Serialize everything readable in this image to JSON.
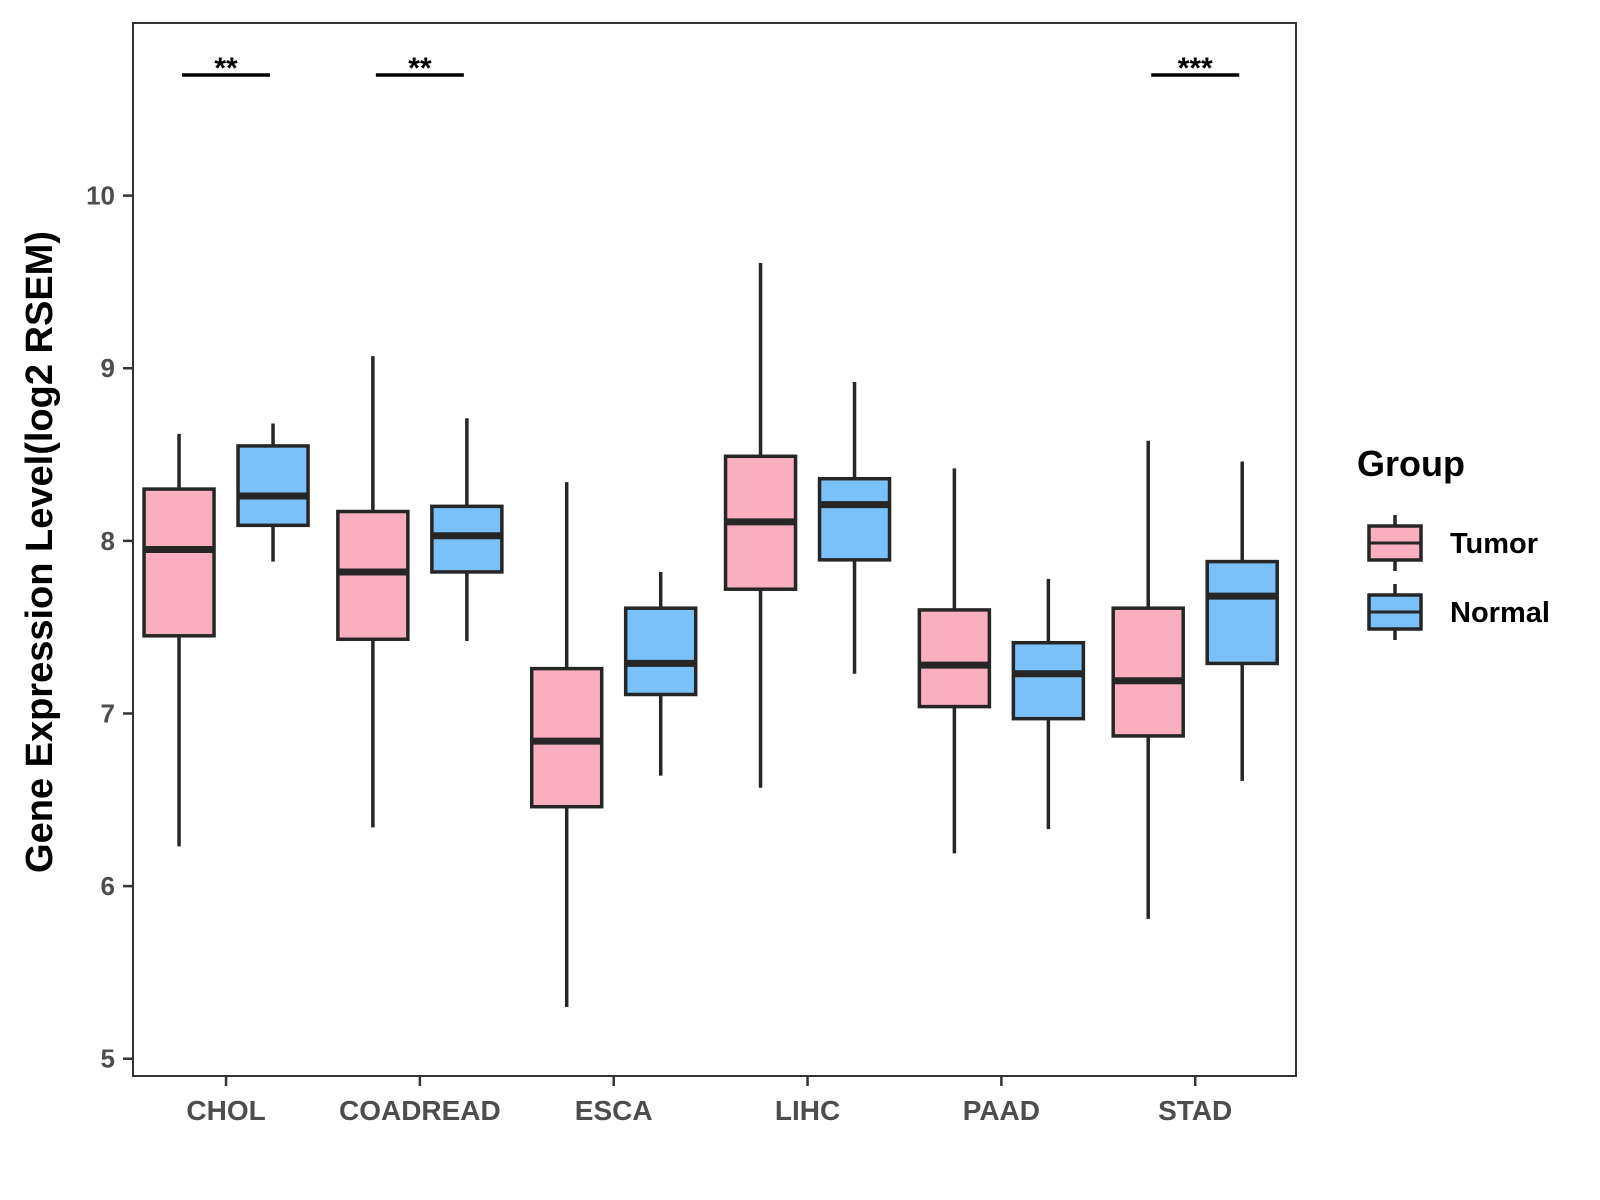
{
  "chart_data": {
    "type": "boxplot",
    "ylabel": "Gene Expression Level(log2 RSEM)",
    "xlabel": "",
    "ylim": [
      4.9,
      11.0
    ],
    "yticks": [
      5,
      6,
      7,
      8,
      9,
      10
    ],
    "categories": [
      "CHOL",
      "COADREAD",
      "ESCA",
      "LIHC",
      "PAAD",
      "STAD"
    ],
    "series": [
      {
        "name": "Tumor",
        "color": "#FAAFC1",
        "boxes": [
          {
            "min": 6.23,
            "q1": 7.45,
            "median": 7.95,
            "q3": 8.3,
            "max": 8.62
          },
          {
            "min": 6.34,
            "q1": 7.43,
            "median": 7.82,
            "q3": 8.17,
            "max": 9.07
          },
          {
            "min": 5.3,
            "q1": 6.46,
            "median": 6.84,
            "q3": 7.26,
            "max": 8.34
          },
          {
            "min": 6.57,
            "q1": 7.72,
            "median": 8.11,
            "q3": 8.49,
            "max": 9.61
          },
          {
            "min": 6.19,
            "q1": 7.04,
            "median": 7.28,
            "q3": 7.6,
            "max": 8.42
          },
          {
            "min": 5.81,
            "q1": 6.87,
            "median": 7.19,
            "q3": 7.61,
            "max": 8.58
          }
        ]
      },
      {
        "name": "Normal",
        "color": "#79C1F8",
        "boxes": [
          {
            "min": 7.88,
            "q1": 8.09,
            "median": 8.26,
            "q3": 8.55,
            "max": 8.68
          },
          {
            "min": 7.42,
            "q1": 7.82,
            "median": 8.03,
            "q3": 8.2,
            "max": 8.71
          },
          {
            "min": 6.64,
            "q1": 7.11,
            "median": 7.29,
            "q3": 7.61,
            "max": 7.82
          },
          {
            "min": 7.23,
            "q1": 7.89,
            "median": 8.21,
            "q3": 8.36,
            "max": 8.92
          },
          {
            "min": 6.33,
            "q1": 6.97,
            "median": 7.23,
            "q3": 7.41,
            "max": 7.78
          },
          {
            "min": 6.61,
            "q1": 7.29,
            "median": 7.68,
            "q3": 7.88,
            "max": 8.46
          }
        ]
      }
    ],
    "significance": [
      {
        "category": "CHOL",
        "label": "**"
      },
      {
        "category": "COADREAD",
        "label": "**"
      },
      {
        "category": "STAD",
        "label": "***"
      }
    ],
    "legend": {
      "title": "Group",
      "items": [
        "Tumor",
        "Normal"
      ],
      "position": "right"
    },
    "grid": false
  }
}
